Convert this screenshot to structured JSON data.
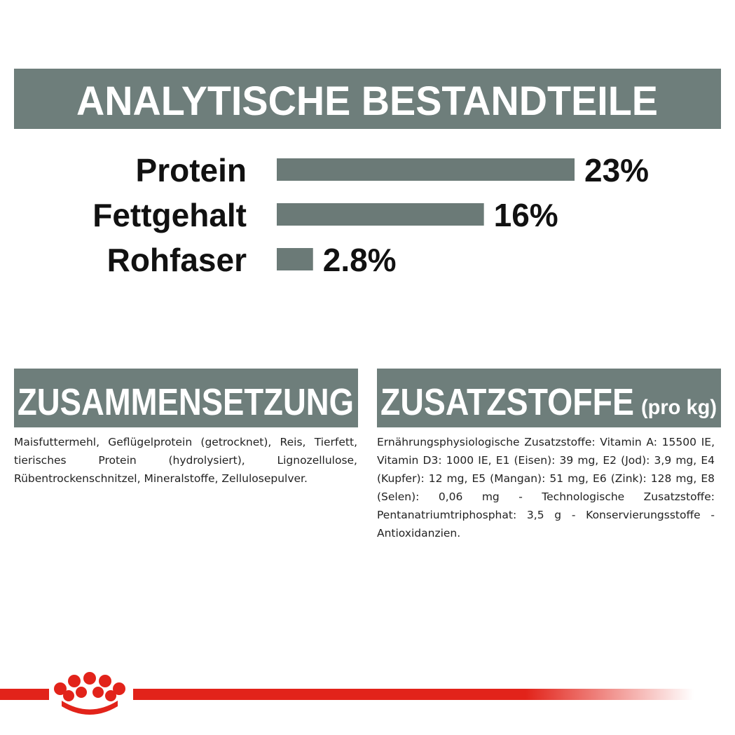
{
  "header": {
    "title": "ANALYTISCHE BESTANDTEILE"
  },
  "chart_data": {
    "type": "bar",
    "orientation": "horizontal",
    "categories": [
      "Protein",
      "Fettgehalt",
      "Rohfaser"
    ],
    "values": [
      23,
      16,
      2.8
    ],
    "value_labels": [
      "23%",
      "16%",
      "2.8%"
    ],
    "color": "#6b7a77"
  },
  "sections": [
    {
      "title": "ZUSAMMENSETZUNG",
      "text": "Maisfuttermehl, Geflügelprotein (getrocknet), Reis, Tierfett, tierisches Protein (hydrolysiert), Lignozellulose, Rübentrockenschnitzel, Mineralstoffe, Zellulosepulver."
    },
    {
      "title": "ZUSATZSTOFFE",
      "subtitle": "(pro kg)",
      "text": "Ernährungsphysiologische Zusatzstoffe: Vitamin A: 15500 IE, Vitamin D3: 1000 IE, E1 (Eisen): 39 mg, E2 (Jod): 3,9 mg, E4 (Kupfer): 12 mg, E5 (Mangan): 51 mg, E6 (Zink): 128 mg, E8 (Selen): 0,06 mg - Technologische Zusatzstoffe: Pentanatriumtriphosphat: 3,5 g - Konservierungsstoffe - Antioxidanzien."
    }
  ]
}
